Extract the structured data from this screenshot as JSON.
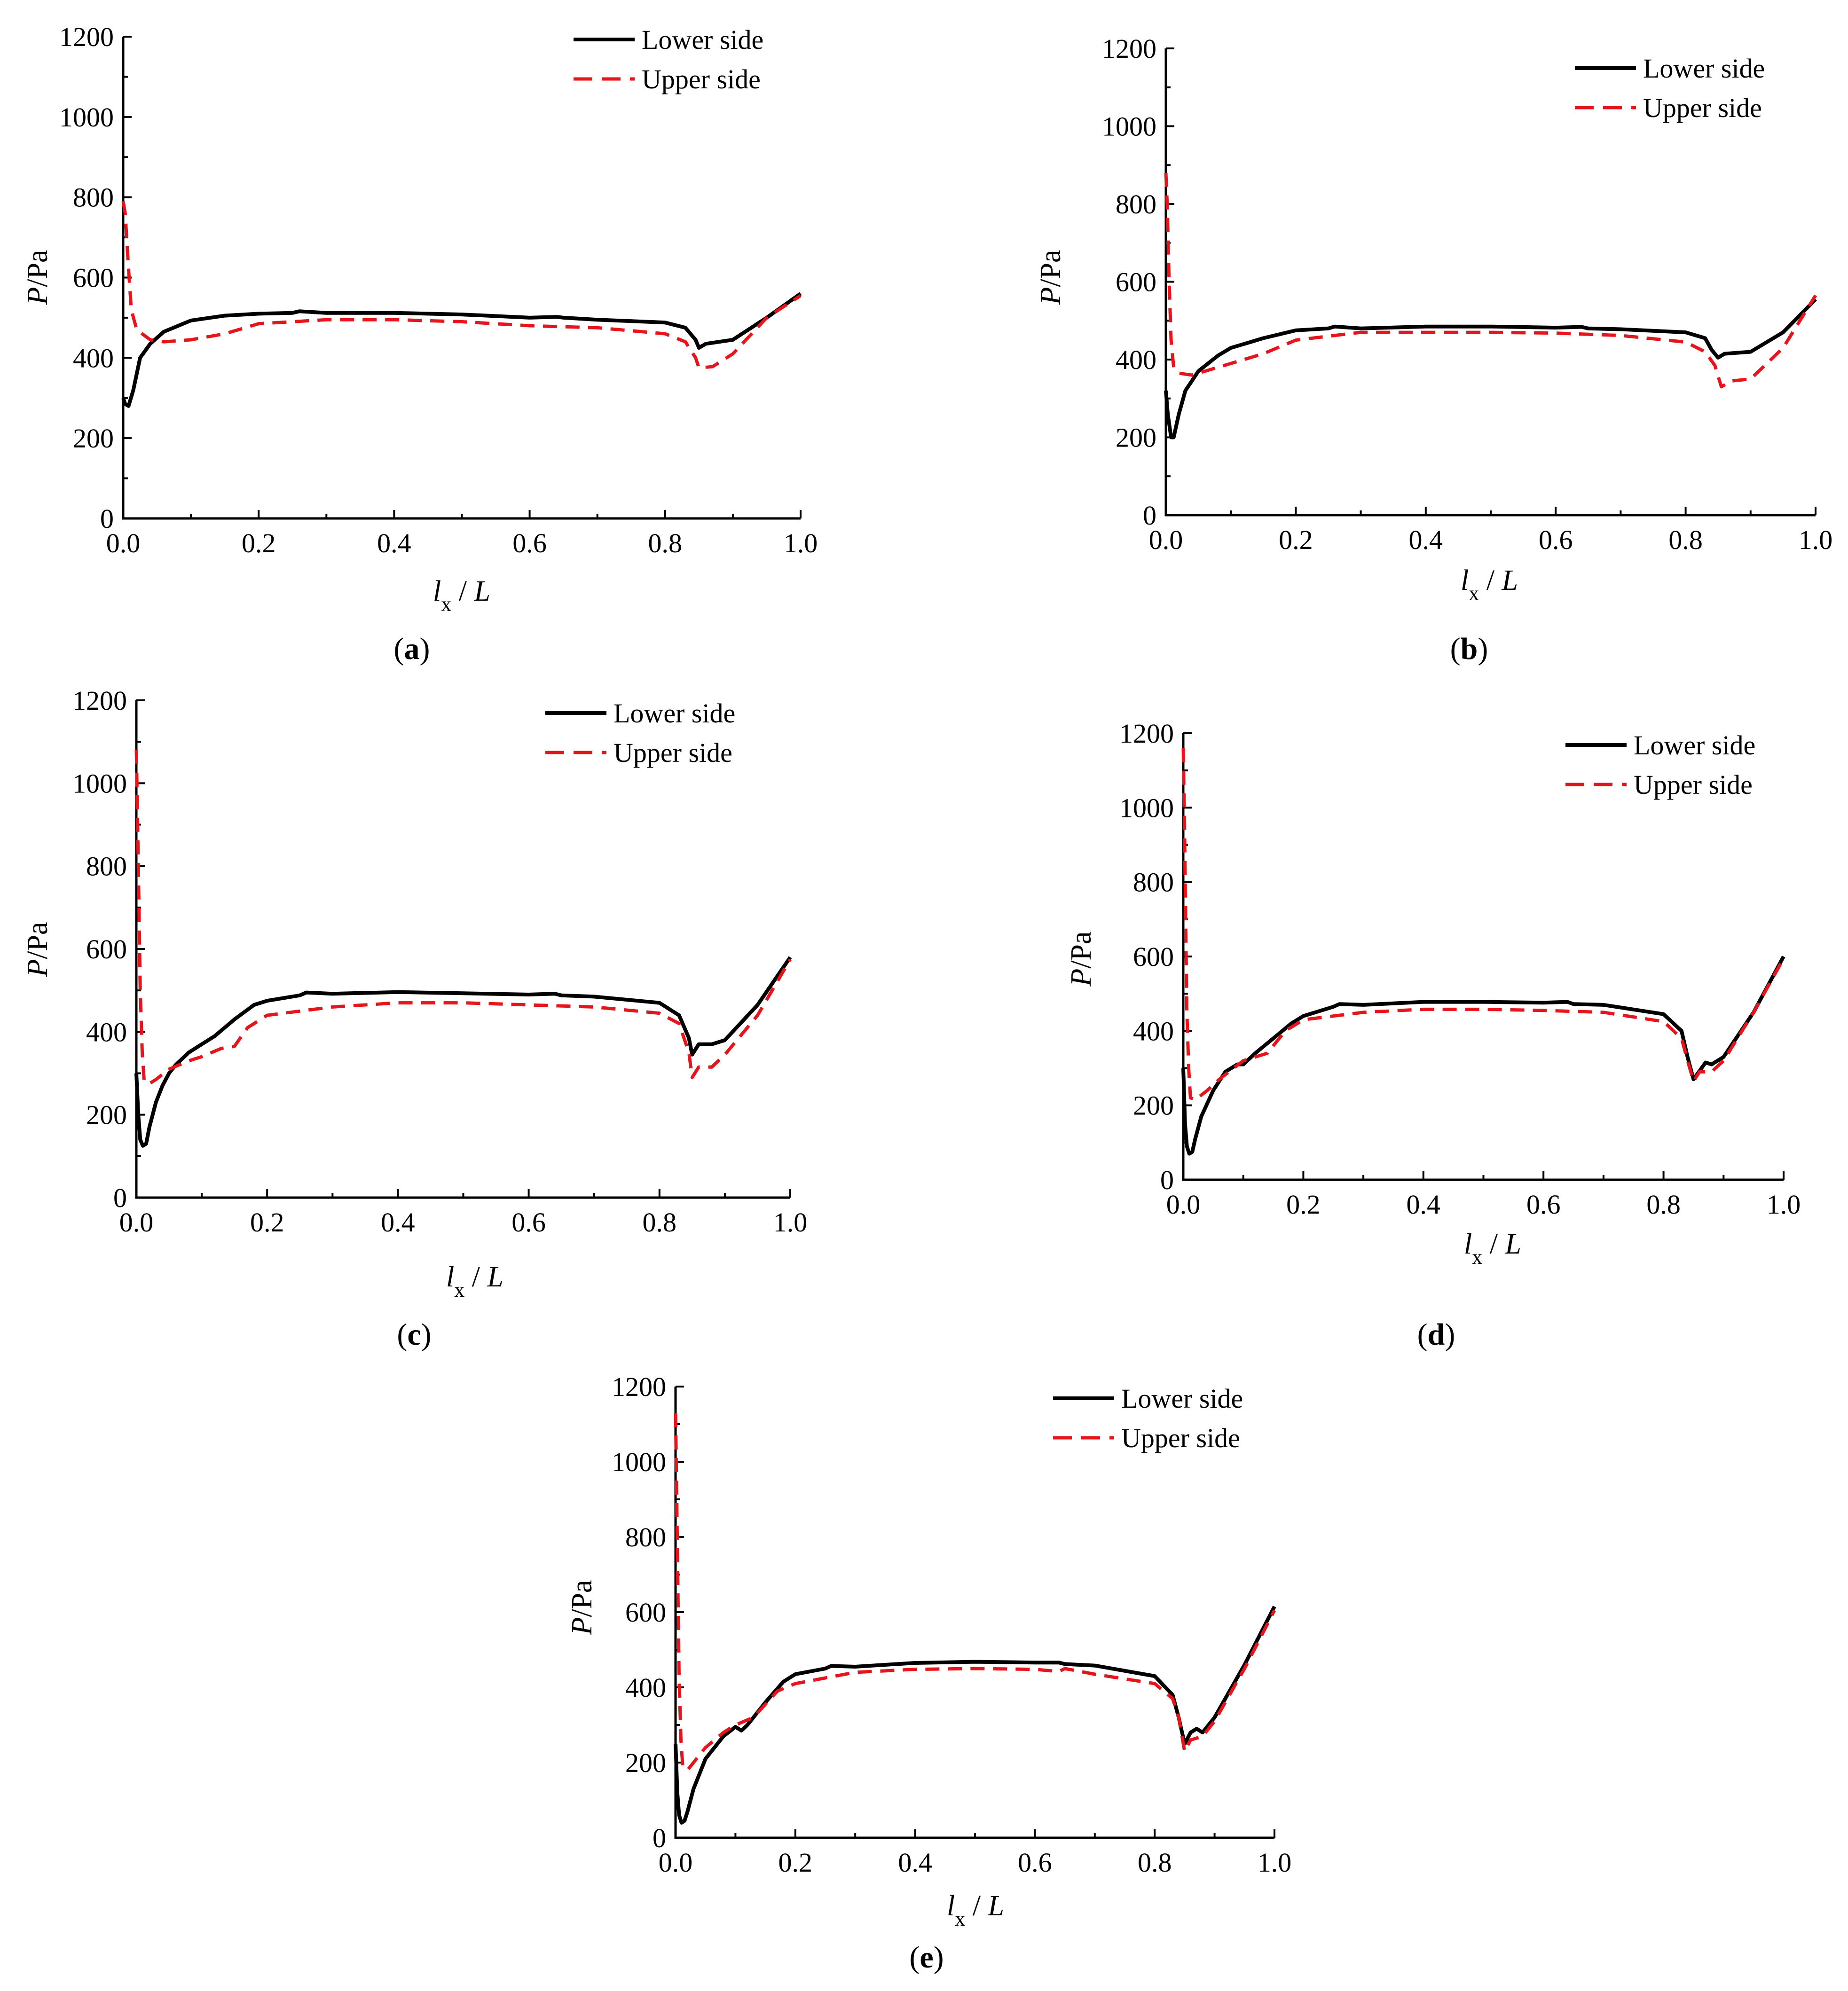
{
  "legend": {
    "lower_label": "Lower side",
    "upper_label": "Upper side"
  },
  "colors": {
    "lower": "#000000",
    "upper": "#e8141c"
  },
  "axis_labels": {
    "y_text": "P/Pa",
    "x_text": "l_x / L"
  },
  "chart_data": [
    {
      "id": "a",
      "label_text": "(a)",
      "letter": "a",
      "type": "line",
      "xlabel": "lx / L",
      "ylabel": "P/Pa",
      "xlim": [
        0,
        1
      ],
      "ylim": [
        0,
        1200
      ],
      "xticks": [
        "0.0",
        "0.2",
        "0.4",
        "0.6",
        "0.8",
        "1.0"
      ],
      "yticks": [
        "0",
        "200",
        "400",
        "600",
        "800",
        "1000",
        "1200"
      ],
      "series": [
        {
          "name": "Lower side",
          "x": [
            0.0,
            0.003,
            0.008,
            0.015,
            0.025,
            0.04,
            0.06,
            0.1,
            0.15,
            0.2,
            0.25,
            0.26,
            0.3,
            0.4,
            0.5,
            0.6,
            0.64,
            0.65,
            0.7,
            0.8,
            0.83,
            0.845,
            0.85,
            0.86,
            0.88,
            0.9,
            0.95,
            1.0
          ],
          "y": [
            300,
            285,
            280,
            320,
            400,
            435,
            465,
            493,
            505,
            510,
            512,
            516,
            512,
            512,
            508,
            500,
            502,
            500,
            495,
            488,
            475,
            445,
            425,
            435,
            440,
            445,
            500,
            560
          ]
        },
        {
          "name": "Upper side",
          "x": [
            0.0,
            0.003,
            0.008,
            0.012,
            0.02,
            0.04,
            0.06,
            0.1,
            0.15,
            0.2,
            0.3,
            0.4,
            0.5,
            0.6,
            0.7,
            0.8,
            0.83,
            0.845,
            0.85,
            0.87,
            0.9,
            0.95,
            1.0
          ],
          "y": [
            790,
            760,
            620,
            520,
            470,
            445,
            440,
            445,
            460,
            485,
            495,
            495,
            490,
            480,
            475,
            460,
            440,
            400,
            375,
            378,
            410,
            500,
            555
          ]
        }
      ]
    },
    {
      "id": "b",
      "label_text": "(b)",
      "letter": "b",
      "type": "line",
      "xlabel": "lx / L",
      "ylabel": "P/Pa",
      "xlim": [
        0,
        1
      ],
      "ylim": [
        0,
        1200
      ],
      "xticks": [
        "0.0",
        "0.2",
        "0.4",
        "0.6",
        "0.8",
        "1.0"
      ],
      "yticks": [
        "0",
        "200",
        "400",
        "600",
        "800",
        "1000",
        "1200"
      ],
      "series": [
        {
          "name": "Lower side",
          "x": [
            0.0,
            0.003,
            0.008,
            0.012,
            0.02,
            0.03,
            0.05,
            0.08,
            0.1,
            0.15,
            0.2,
            0.25,
            0.26,
            0.3,
            0.4,
            0.5,
            0.6,
            0.64,
            0.65,
            0.7,
            0.8,
            0.83,
            0.84,
            0.85,
            0.86,
            0.9,
            0.95,
            1.0
          ],
          "y": [
            320,
            260,
            200,
            200,
            260,
            320,
            370,
            410,
            430,
            455,
            475,
            480,
            485,
            480,
            485,
            485,
            482,
            484,
            480,
            478,
            470,
            455,
            425,
            405,
            415,
            420,
            470,
            555
          ]
        },
        {
          "name": "Upper side",
          "x": [
            0.0,
            0.002,
            0.005,
            0.008,
            0.012,
            0.02,
            0.04,
            0.06,
            0.1,
            0.15,
            0.2,
            0.3,
            0.4,
            0.5,
            0.6,
            0.7,
            0.8,
            0.83,
            0.845,
            0.855,
            0.87,
            0.9,
            0.95,
            1.0
          ],
          "y": [
            880,
            800,
            600,
            450,
            380,
            365,
            360,
            370,
            390,
            415,
            450,
            470,
            470,
            470,
            468,
            462,
            445,
            420,
            385,
            330,
            345,
            350,
            430,
            565
          ]
        }
      ]
    },
    {
      "id": "c",
      "label_text": "(c)",
      "letter": "c",
      "type": "line",
      "xlabel": "lx / L",
      "ylabel": "P/Pa",
      "xlim": [
        0,
        1
      ],
      "ylim": [
        0,
        1200
      ],
      "xticks": [
        "0.0",
        "0.2",
        "0.4",
        "0.6",
        "0.8",
        "1.0"
      ],
      "yticks": [
        "0",
        "200",
        "400",
        "600",
        "800",
        "1000",
        "1200"
      ],
      "series": [
        {
          "name": "Lower side",
          "x": [
            0.0,
            0.003,
            0.006,
            0.01,
            0.015,
            0.02,
            0.03,
            0.04,
            0.05,
            0.06,
            0.08,
            0.1,
            0.12,
            0.15,
            0.18,
            0.2,
            0.25,
            0.26,
            0.3,
            0.4,
            0.5,
            0.6,
            0.64,
            0.65,
            0.7,
            0.8,
            0.83,
            0.845,
            0.85,
            0.86,
            0.88,
            0.9,
            0.95,
            1.0
          ],
          "y": [
            300,
            200,
            140,
            125,
            130,
            170,
            230,
            270,
            300,
            320,
            350,
            370,
            390,
            430,
            465,
            475,
            488,
            495,
            492,
            496,
            493,
            490,
            492,
            488,
            485,
            470,
            440,
            385,
            345,
            370,
            370,
            380,
            465,
            580
          ]
        },
        {
          "name": "Upper side",
          "x": [
            0.0,
            0.002,
            0.004,
            0.006,
            0.009,
            0.012,
            0.02,
            0.03,
            0.05,
            0.08,
            0.1,
            0.13,
            0.15,
            0.17,
            0.2,
            0.3,
            0.4,
            0.5,
            0.6,
            0.7,
            0.8,
            0.83,
            0.845,
            0.85,
            0.86,
            0.88,
            0.9,
            0.95,
            1.0
          ],
          "y": [
            1080,
            900,
            700,
            500,
            350,
            280,
            275,
            285,
            310,
            330,
            340,
            360,
            365,
            410,
            440,
            460,
            470,
            470,
            465,
            460,
            445,
            420,
            350,
            290,
            315,
            315,
            345,
            440,
            575
          ]
        }
      ]
    },
    {
      "id": "d",
      "label_text": "(d)",
      "letter": "d",
      "type": "line",
      "xlabel": "lx / L",
      "ylabel": "P/Pa",
      "xlim": [
        0,
        1
      ],
      "ylim": [
        0,
        1200
      ],
      "xticks": [
        "0.0",
        "0.2",
        "0.4",
        "0.6",
        "0.8",
        "1.0"
      ],
      "yticks": [
        "0",
        "200",
        "400",
        "600",
        "800",
        "1000",
        "1200"
      ],
      "series": [
        {
          "name": "Lower side",
          "x": [
            0.0,
            0.003,
            0.006,
            0.01,
            0.015,
            0.02,
            0.03,
            0.05,
            0.07,
            0.09,
            0.1,
            0.12,
            0.15,
            0.18,
            0.2,
            0.25,
            0.26,
            0.3,
            0.4,
            0.5,
            0.6,
            0.64,
            0.65,
            0.7,
            0.8,
            0.83,
            0.84,
            0.85,
            0.87,
            0.88,
            0.9,
            0.95,
            1.0
          ],
          "y": [
            300,
            150,
            90,
            70,
            75,
            110,
            170,
            240,
            290,
            310,
            310,
            340,
            380,
            420,
            440,
            465,
            472,
            470,
            478,
            478,
            476,
            478,
            472,
            470,
            445,
            400,
            330,
            270,
            315,
            310,
            330,
            450,
            600
          ]
        },
        {
          "name": "Upper side",
          "x": [
            0.0,
            0.002,
            0.004,
            0.006,
            0.009,
            0.012,
            0.02,
            0.04,
            0.06,
            0.1,
            0.14,
            0.17,
            0.2,
            0.3,
            0.4,
            0.5,
            0.6,
            0.7,
            0.8,
            0.83,
            0.84,
            0.85,
            0.86,
            0.88,
            0.9,
            0.95,
            1.0
          ],
          "y": [
            1160,
            950,
            700,
            450,
            300,
            220,
            215,
            240,
            270,
            320,
            340,
            400,
            430,
            450,
            458,
            458,
            455,
            450,
            425,
            380,
            320,
            265,
            290,
            290,
            320,
            450,
            595
          ]
        }
      ]
    },
    {
      "id": "e",
      "label_text": "(e)",
      "letter": "e",
      "type": "line",
      "xlabel": "lx / L",
      "ylabel": "P/Pa",
      "xlim": [
        0,
        1
      ],
      "ylim": [
        0,
        1200
      ],
      "xticks": [
        "0.0",
        "0.2",
        "0.4",
        "0.6",
        "0.8",
        "1.0"
      ],
      "yticks": [
        "0",
        "200",
        "400",
        "600",
        "800",
        "1000",
        "1200"
      ],
      "series": [
        {
          "name": "Lower side",
          "x": [
            0.0,
            0.003,
            0.006,
            0.01,
            0.015,
            0.02,
            0.03,
            0.05,
            0.08,
            0.1,
            0.11,
            0.12,
            0.15,
            0.18,
            0.2,
            0.25,
            0.26,
            0.3,
            0.4,
            0.5,
            0.6,
            0.64,
            0.65,
            0.7,
            0.8,
            0.83,
            0.84,
            0.85,
            0.86,
            0.87,
            0.88,
            0.9,
            0.95,
            1.0
          ],
          "y": [
            250,
            120,
            60,
            40,
            45,
            70,
            130,
            210,
            270,
            295,
            285,
            300,
            360,
            415,
            435,
            450,
            457,
            455,
            465,
            468,
            466,
            466,
            462,
            458,
            430,
            380,
            320,
            250,
            280,
            290,
            280,
            320,
            460,
            615
          ]
        },
        {
          "name": "Upper side",
          "x": [
            0.0,
            0.002,
            0.004,
            0.006,
            0.009,
            0.012,
            0.02,
            0.03,
            0.05,
            0.08,
            0.1,
            0.13,
            0.17,
            0.2,
            0.3,
            0.4,
            0.5,
            0.6,
            0.64,
            0.65,
            0.7,
            0.8,
            0.83,
            0.84,
            0.85,
            0.86,
            0.88,
            0.9,
            0.95,
            1.0
          ],
          "y": [
            1130,
            900,
            650,
            420,
            260,
            190,
            180,
            200,
            240,
            280,
            300,
            320,
            390,
            410,
            440,
            448,
            450,
            448,
            442,
            450,
            435,
            410,
            370,
            320,
            230,
            260,
            270,
            310,
            450,
            605
          ]
        }
      ]
    }
  ]
}
